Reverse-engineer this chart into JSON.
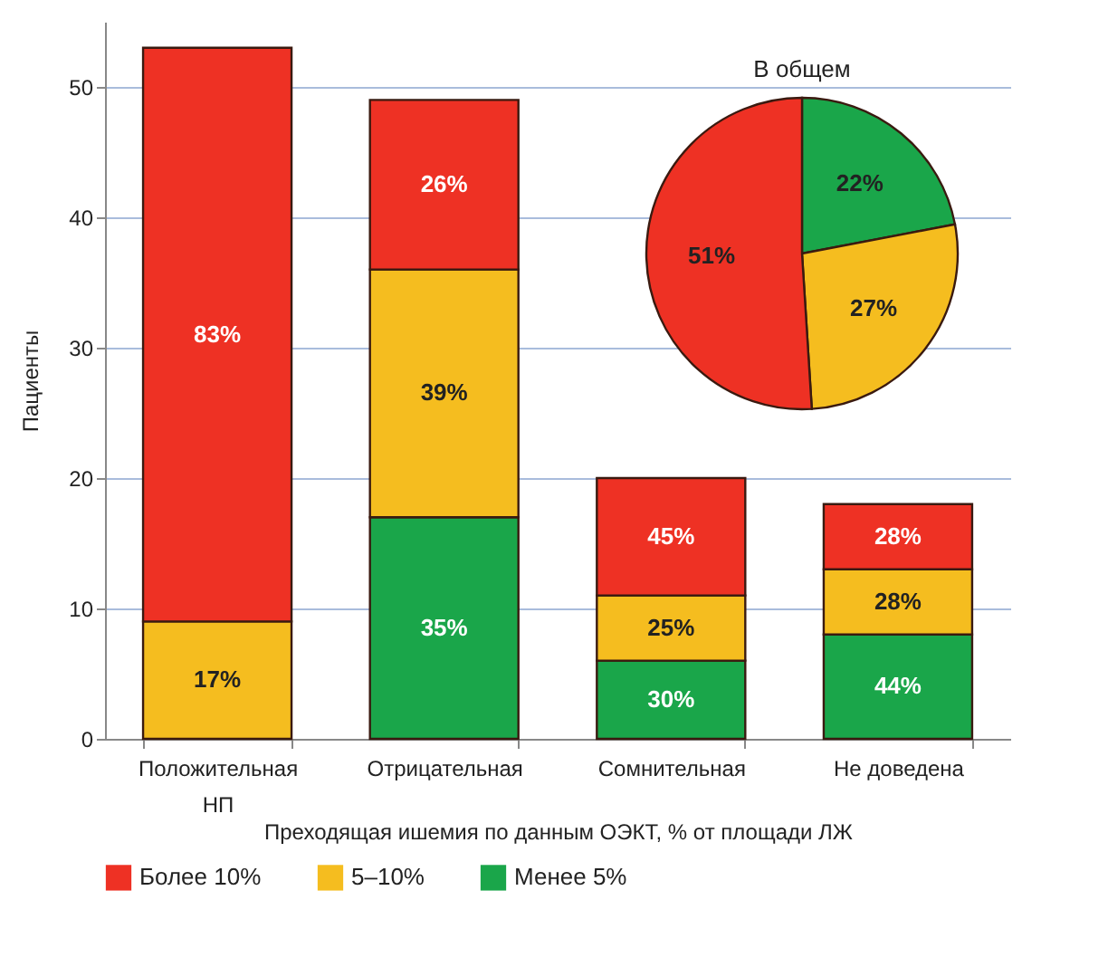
{
  "chart_data": [
    {
      "type": "bar",
      "stacked": true,
      "categories": [
        "Положительная НП",
        "Отрицательная",
        "Сомнительная",
        "Не доведена"
      ],
      "xlabel": "Преходящая ишемия по данным ОЭКТ, % от площади ЛЖ",
      "ylabel": "Пациенты",
      "ylim": [
        0,
        55
      ],
      "yticks": [
        0,
        10,
        20,
        30,
        40,
        50
      ],
      "grid": "y",
      "legend": "bottom",
      "series": [
        {
          "name": "Менее 5%",
          "color": "#1aa64a",
          "values": [
            null,
            17,
            6,
            8
          ]
        },
        {
          "name": "5–10%",
          "color": "#f5bd1f",
          "values": [
            9,
            19,
            5,
            5
          ]
        },
        {
          "name": "Более 10%",
          "color": "#ee3124",
          "values": [
            44,
            13,
            9,
            5
          ]
        }
      ],
      "annotations": [
        "17%",
        "83%",
        "35%",
        "39%",
        "26%",
        "30%",
        "25%",
        "45%",
        "44%",
        "28%",
        "28%"
      ]
    },
    {
      "type": "pie",
      "title": "В общем",
      "categories": [
        null,
        null,
        null
      ],
      "values": [
        22,
        27,
        51
      ],
      "colors": [
        "#1aa64a",
        "#f5bd1f",
        "#ee3124"
      ],
      "value_labels": [
        "22%",
        "27%",
        "51%"
      ]
    }
  ]
}
